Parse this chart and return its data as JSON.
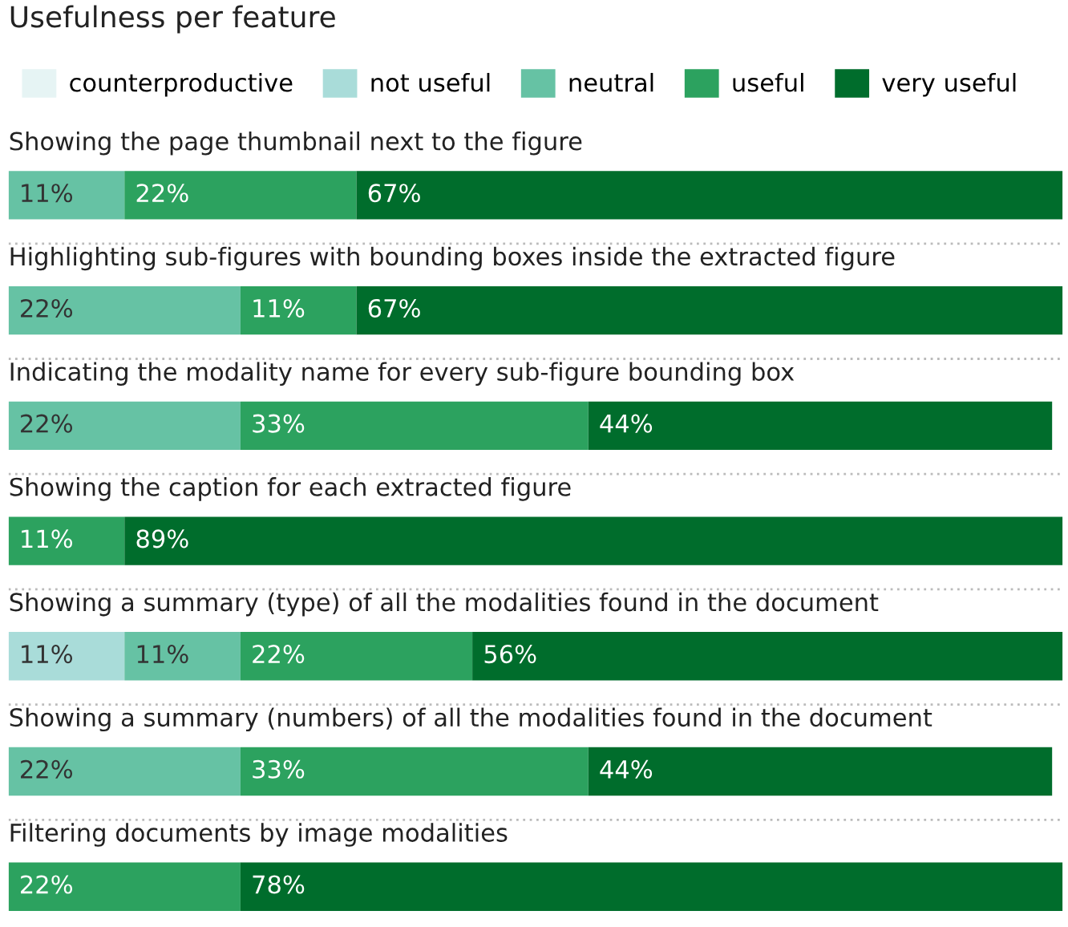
{
  "chart_data": {
    "type": "bar",
    "orientation": "horizontal",
    "stacked": true,
    "title": "Usefulness per feature",
    "categories": [
      "Showing the page thumbnail next to the figure",
      "Highlighting sub-figures with bounding boxes inside the extracted figure",
      "Indicating the modality name for every sub-figure bounding box",
      "Showing the caption for each extracted figure",
      "Showing a summary (type) of all the modalities found in the document",
      "Showing a summary (numbers) of all the modalities found in the document",
      "Filtering documents by image modalities"
    ],
    "series": [
      {
        "name": "counterproductive",
        "color": "#e6f4f4",
        "values": [
          null,
          null,
          null,
          null,
          null,
          null,
          null
        ]
      },
      {
        "name": "not useful",
        "color": "#a9dcd9",
        "values": [
          null,
          null,
          null,
          null,
          11,
          null,
          null
        ],
        "value_labels": [
          null,
          null,
          null,
          null,
          "11%",
          null,
          null
        ]
      },
      {
        "name": "neutral",
        "color": "#66c2a4",
        "values": [
          11,
          22,
          22,
          null,
          11,
          22,
          null
        ],
        "value_labels": [
          "11%",
          "22%",
          "22%",
          null,
          "11%",
          "22%",
          null
        ]
      },
      {
        "name": "useful",
        "color": "#2ca25f",
        "values": [
          22,
          11,
          33,
          11,
          22,
          33,
          22
        ],
        "value_labels": [
          "22%",
          "11%",
          "33%",
          "11%",
          "22%",
          "33%",
          "22%"
        ]
      },
      {
        "name": "very useful",
        "color": "#006d2c",
        "values": [
          67,
          67,
          44,
          89,
          56,
          44,
          78
        ],
        "value_labels": [
          "67%",
          "67%",
          "44%",
          "89%",
          "56%",
          "44%",
          "78%"
        ]
      }
    ],
    "xlim": [
      0,
      100
    ],
    "legend": "top left"
  }
}
